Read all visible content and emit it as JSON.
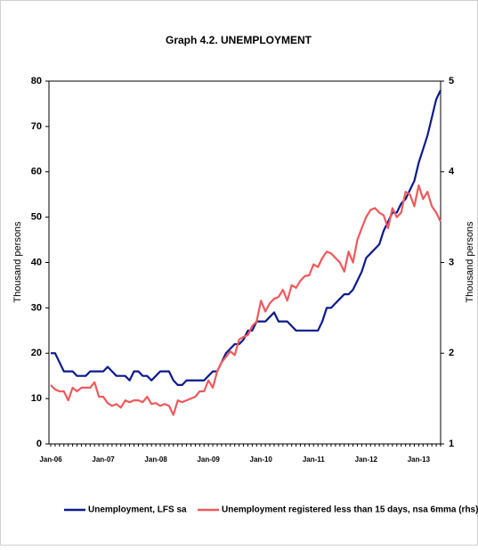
{
  "chart_data": {
    "type": "line",
    "title": "Graph 4.2. UNEMPLOYMENT",
    "y_label": "Thousand persons",
    "y2_label": "Thousand persons",
    "categories": [
      "Jan-06",
      null,
      null,
      null,
      null,
      null,
      null,
      null,
      null,
      null,
      null,
      null,
      "Jan-07",
      null,
      null,
      null,
      null,
      null,
      null,
      null,
      null,
      null,
      null,
      null,
      "Jan-08",
      null,
      null,
      null,
      null,
      null,
      null,
      null,
      null,
      null,
      null,
      null,
      "Jan-09",
      null,
      null,
      null,
      null,
      null,
      null,
      null,
      null,
      null,
      null,
      null,
      "Jan-10",
      null,
      null,
      null,
      null,
      null,
      null,
      null,
      null,
      null,
      null,
      null,
      "Jan-11",
      null,
      null,
      null,
      null,
      null,
      null,
      null,
      null,
      null,
      null,
      null,
      "Jan-12",
      null,
      null,
      null,
      null,
      null,
      null,
      null,
      null,
      null,
      null,
      null,
      "Jan-13",
      null,
      null,
      null,
      null,
      null
    ],
    "series": [
      {
        "name": "Unemployment, LFS sa",
        "color": "#0b1a8c",
        "values": [
          20,
          20,
          18,
          16,
          16,
          16,
          15,
          15,
          15,
          16,
          16,
          16,
          16,
          17,
          16,
          15,
          15,
          15,
          14,
          16,
          16,
          15,
          15,
          14,
          15,
          16,
          16,
          16,
          14,
          13,
          13,
          14,
          14,
          14,
          14,
          14,
          15,
          16,
          16,
          18,
          20,
          21,
          22,
          22,
          23,
          25,
          25,
          27,
          27,
          27,
          28,
          29,
          27,
          27,
          27,
          26,
          25,
          25,
          25,
          25,
          25,
          25,
          27,
          30,
          30,
          31,
          32,
          33,
          33,
          34,
          36,
          38,
          41,
          42,
          43,
          44,
          47,
          49,
          51,
          51,
          53,
          54,
          56,
          58,
          62,
          65,
          68,
          72,
          76,
          78
        ]
      },
      {
        "name": "Unemployment registered less than 15 days, nsa 6mma (rhs)",
        "color": "#f0595c",
        "axis": "y2",
        "values": [
          1.65,
          1.6,
          1.58,
          1.58,
          1.48,
          1.62,
          1.58,
          1.62,
          1.62,
          1.62,
          1.68,
          1.52,
          1.52,
          1.45,
          1.42,
          1.44,
          1.4,
          1.48,
          1.46,
          1.48,
          1.48,
          1.46,
          1.52,
          1.44,
          1.45,
          1.42,
          1.44,
          1.42,
          1.32,
          1.48,
          1.46,
          1.48,
          1.5,
          1.52,
          1.58,
          1.58,
          1.7,
          1.62,
          1.8,
          1.9,
          1.96,
          2.02,
          1.98,
          2.15,
          2.18,
          2.2,
          2.3,
          2.35,
          2.58,
          2.46,
          2.55,
          2.6,
          2.62,
          2.7,
          2.58,
          2.75,
          2.72,
          2.8,
          2.85,
          2.86,
          2.98,
          2.95,
          3.05,
          3.12,
          3.1,
          3.05,
          3.0,
          2.9,
          3.12,
          3.0,
          3.25,
          3.38,
          3.5,
          3.58,
          3.6,
          3.55,
          3.52,
          3.38,
          3.6,
          3.5,
          3.55,
          3.78,
          3.75,
          3.62,
          3.85,
          3.7,
          3.78,
          3.62,
          3.55,
          3.45
        ]
      }
    ],
    "ylim": [
      0,
      80
    ],
    "yticks": [
      0,
      10,
      20,
      30,
      40,
      50,
      60,
      70,
      80
    ],
    "y2lim": [
      1,
      5
    ],
    "y2ticks": [
      1,
      2,
      3,
      4,
      5
    ],
    "legend": "bottom"
  }
}
